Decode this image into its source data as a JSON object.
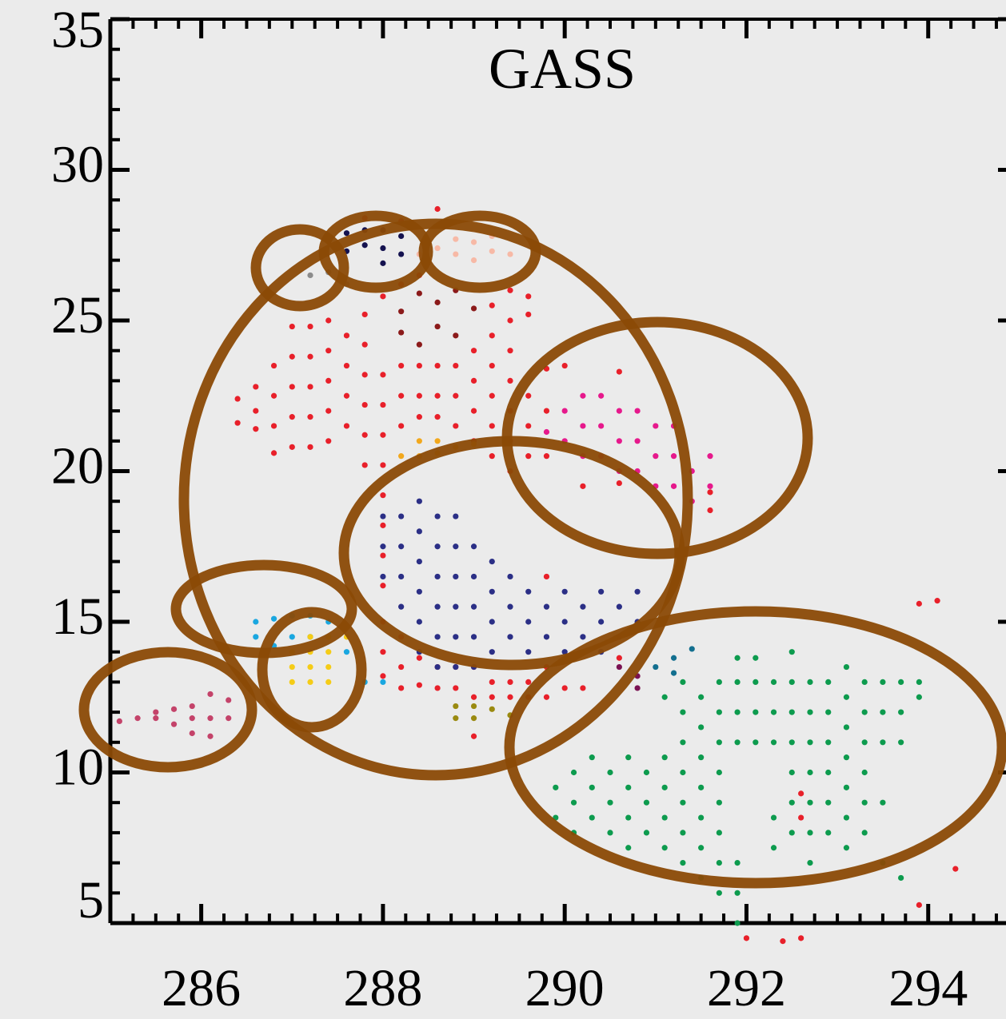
{
  "chart_data": {
    "type": "scatter",
    "title": "GASS",
    "xlim": [
      285,
      294.9
    ],
    "ylim": [
      5,
      35
    ],
    "xticks": [
      286,
      288,
      290,
      292,
      294
    ],
    "yticks": [
      5,
      10,
      15,
      20,
      25,
      30,
      35
    ],
    "series": [
      {
        "color": "#e8202a",
        "x": [
          286.4,
          286.4,
          286.6,
          286.6,
          286.6,
          286.8,
          286.8,
          286.8,
          286.8,
          287.0,
          287.0,
          287.0,
          287.0,
          287.0,
          287.2,
          287.2,
          287.2,
          287.2,
          287.2,
          287.4,
          287.4,
          287.4,
          287.4,
          287.4,
          287.6,
          287.6,
          287.6,
          287.6,
          287.8,
          287.8,
          287.8,
          287.8,
          287.8,
          287.8,
          287.8,
          288.0,
          288.0,
          288.0,
          288.0,
          288.0,
          288.0,
          288.0,
          288.0,
          288.0,
          288.0,
          288.0,
          288.0,
          288.2,
          288.2,
          288.2,
          288.2,
          288.2,
          288.2,
          288.2,
          288.2,
          288.4,
          288.4,
          288.4,
          288.4,
          288.4,
          288.4,
          288.6,
          288.6,
          288.6,
          288.6,
          288.6,
          288.6,
          288.8,
          288.8,
          288.8,
          288.8,
          288.8,
          289.0,
          289.0,
          289.0,
          289.0,
          289.0,
          289.0,
          289.0,
          289.2,
          289.2,
          289.2,
          289.2,
          289.2,
          289.2,
          289.2,
          289.2,
          289.4,
          289.4,
          289.4,
          289.4,
          289.4,
          289.4,
          289.4,
          289.4,
          289.4,
          289.6,
          289.6,
          289.6,
          289.6,
          289.6,
          289.6,
          289.6,
          289.8,
          289.8,
          289.8,
          289.8,
          289.8,
          289.8,
          290.0,
          290.0,
          290.2,
          290.2,
          290.6,
          290.6,
          290.6,
          291.6,
          291.6,
          292.0,
          292.4,
          292.6,
          292.6,
          292.6,
          293.9,
          293.9,
          294.1,
          294.3
        ],
        "values": [
          22.4,
          21.6,
          22.8,
          22.0,
          21.4,
          23.5,
          22.5,
          21.5,
          20.6,
          24.8,
          23.8,
          22.8,
          21.8,
          20.8,
          24.8,
          23.8,
          22.8,
          21.8,
          20.8,
          25,
          24,
          23,
          22,
          21,
          24.5,
          23.5,
          22.5,
          21.5,
          28.4,
          25.2,
          24.2,
          23.2,
          22.2,
          21.2,
          20.2,
          25.8,
          23.2,
          22.2,
          21.2,
          20.2,
          19.2,
          18.2,
          17.2,
          16.2,
          15,
          14,
          13.2,
          28.3,
          26.2,
          23.5,
          22.5,
          21.5,
          14.5,
          13.5,
          12.8,
          26.5,
          23.5,
          22.5,
          21.8,
          13.8,
          12.9,
          28.7,
          23.5,
          22.5,
          21.8,
          13.5,
          12.8,
          23.5,
          22.5,
          21.5,
          13.5,
          12.8,
          24,
          23,
          22,
          21,
          13.5,
          12.5,
          11.2,
          25.5,
          24.5,
          23.5,
          22.5,
          21.5,
          20.5,
          13,
          12.5,
          26,
          25,
          24,
          23,
          22,
          21,
          20,
          13,
          12.5,
          25.8,
          25.2,
          22.5,
          21.5,
          20.5,
          13,
          12.5,
          23.4,
          22,
          20.5,
          16.5,
          13.5,
          12.5,
          23.5,
          12.8,
          19.5,
          12.8,
          23.3,
          19.6,
          13.8,
          19.3,
          18.7,
          4.5,
          4.4,
          9.3,
          8.5,
          4.5,
          15.6,
          5.6,
          15.7,
          6.8
        ]
      },
      {
        "color": "#2b2f86",
        "x": [
          288.0,
          288.0,
          288.0,
          288.2,
          288.2,
          288.2,
          288.2,
          288.4,
          288.4,
          288.4,
          288.4,
          288.4,
          288.4,
          288.6,
          288.6,
          288.6,
          288.6,
          288.6,
          288.6,
          288.8,
          288.8,
          288.8,
          288.8,
          288.8,
          288.8,
          289.0,
          289.0,
          289.0,
          289.0,
          289.0,
          289.2,
          289.2,
          289.2,
          289.2,
          289.4,
          289.4,
          289.4,
          289.6,
          289.6,
          289.6,
          289.8,
          289.8,
          290.0,
          290.0,
          290.0,
          290.2,
          290.2,
          290.4,
          290.4,
          290.4,
          290.6,
          290.6,
          290.8,
          290.8
        ],
        "values": [
          16.5,
          17.5,
          18.5,
          15.5,
          16.5,
          17.5,
          18.5,
          14,
          15,
          16,
          17,
          18,
          19,
          13.5,
          14.5,
          15.5,
          16.5,
          17.5,
          18.5,
          13.5,
          14.5,
          15.5,
          16.5,
          17.5,
          18.5,
          13.5,
          14.5,
          15.5,
          16.5,
          17.5,
          14,
          15,
          16,
          17,
          14.5,
          15.5,
          16.5,
          14,
          15,
          16,
          14.5,
          15.5,
          14,
          15,
          16,
          14.5,
          15.5,
          14,
          15,
          16,
          14.5,
          15.5,
          15,
          16
        ]
      },
      {
        "color": "#e6198c",
        "x": [
          289.8,
          290.0,
          290.0,
          290.2,
          290.2,
          290.2,
          290.4,
          290.4,
          290.4,
          290.6,
          290.6,
          290.6,
          290.8,
          290.8,
          290.8,
          291.0,
          291.0,
          291.0,
          291.2,
          291.2,
          291.2,
          291.4,
          291.4,
          291.6,
          291.6
        ],
        "values": [
          21.3,
          21,
          22,
          20.5,
          21.5,
          22.5,
          20.5,
          21.5,
          22.5,
          20,
          21,
          22,
          20,
          21,
          22,
          19.5,
          20.5,
          21.5,
          19.5,
          20.5,
          21.5,
          19,
          20,
          19.5,
          20.5
        ]
      },
      {
        "color": "#0d9b4e",
        "x": [
          289.9,
          289.9,
          290.1,
          290.1,
          290.1,
          290.3,
          290.3,
          290.3,
          290.5,
          290.5,
          290.5,
          290.7,
          290.7,
          290.7,
          290.7,
          290.9,
          290.9,
          290.9,
          291.1,
          291.1,
          291.1,
          291.1,
          291.1,
          291.3,
          291.3,
          291.3,
          291.3,
          291.3,
          291.3,
          291.3,
          291.5,
          291.5,
          291.5,
          291.5,
          291.5,
          291.5,
          291.5,
          291.7,
          291.7,
          291.7,
          291.7,
          291.7,
          291.7,
          291.7,
          291.7,
          291.9,
          291.9,
          291.9,
          291.9,
          291.9,
          291.9,
          291.9,
          292.1,
          292.1,
          292.1,
          292.1,
          292.3,
          292.3,
          292.3,
          292.3,
          292.3,
          292.5,
          292.5,
          292.5,
          292.5,
          292.5,
          292.5,
          292.5,
          292.7,
          292.7,
          292.7,
          292.7,
          292.7,
          292.7,
          292.7,
          292.9,
          292.9,
          292.9,
          292.9,
          292.9,
          292.9,
          293.1,
          293.1,
          293.1,
          293.1,
          293.1,
          293.1,
          293.1,
          293.3,
          293.3,
          293.3,
          293.3,
          293.3,
          293.3,
          293.5,
          293.5,
          293.5,
          293.5,
          293.5,
          293.7,
          293.7,
          293.7,
          293.7,
          293.9,
          293.9
        ],
        "values": [
          8.5,
          9.5,
          8,
          9,
          10,
          8.5,
          9.5,
          10.5,
          8,
          9,
          10,
          7.5,
          8.5,
          9.5,
          10.5,
          8,
          9,
          10,
          7.5,
          8.5,
          9.5,
          10.5,
          12.5,
          7,
          8,
          9,
          10,
          11,
          12,
          13,
          6.5,
          7.5,
          8.5,
          9.5,
          10.5,
          11.5,
          12.5,
          6,
          7,
          8,
          9,
          10,
          11,
          12,
          13,
          5,
          6,
          7,
          11,
          12,
          13,
          13.8,
          11,
          12,
          13,
          13.8,
          7.5,
          8.5,
          11,
          12,
          13,
          8,
          9,
          10,
          11,
          12,
          13,
          14,
          7,
          8,
          9,
          10,
          11,
          12,
          13,
          8,
          9,
          10,
          11,
          12,
          13,
          7.5,
          8.5,
          9.5,
          10.5,
          11.5,
          12.5,
          13.5,
          8,
          9,
          10,
          11,
          12,
          13,
          7,
          9,
          11,
          12,
          13,
          6.5,
          11,
          12,
          13,
          12.5,
          13
        ]
      },
      {
        "color": "#1aa7e0",
        "x": [
          286.6,
          286.6,
          286.8,
          286.8,
          287.0,
          287.0,
          287.2,
          287.2,
          287.4,
          287.4,
          287.6,
          287.8,
          288.0
        ],
        "values": [
          14.5,
          15,
          14.2,
          15.1,
          14.5,
          15.2,
          14.5,
          15.2,
          14.5,
          15,
          14,
          13,
          13
        ]
      },
      {
        "color": "#f5cc17",
        "x": [
          287.0,
          287.0,
          287.0,
          287.2,
          287.2,
          287.2,
          287.2,
          287.4,
          287.4,
          287.4,
          287.4,
          287.6
        ],
        "values": [
          13,
          13.5,
          14,
          13,
          13.5,
          14,
          14.5,
          13,
          13.5,
          14,
          14.5,
          14.5
        ]
      },
      {
        "color": "#c4436a",
        "x": [
          285.1,
          285.3,
          285.5,
          285.5,
          285.7,
          285.7,
          285.9,
          285.9,
          285.9,
          286.1,
          286.1,
          286.1,
          286.3,
          286.3
        ],
        "values": [
          11.7,
          11.8,
          11.8,
          12.0,
          11.6,
          12.1,
          11.3,
          11.8,
          12.2,
          11.2,
          11.8,
          12.6,
          11.8,
          12.4
        ]
      },
      {
        "color": "#8b1a1a",
        "x": [
          288.2,
          288.4,
          288.6,
          288.8,
          289.0,
          288.2,
          288.4,
          288.6,
          288.8
        ],
        "values": [
          25.3,
          25.9,
          25.6,
          26,
          25.4,
          24.6,
          24.2,
          24.8,
          24.5
        ]
      },
      {
        "color": "#f7b9a6",
        "x": [
          288.4,
          288.6,
          288.8,
          288.8,
          289.0,
          289.0,
          289.2,
          289.2,
          289.4
        ],
        "values": [
          27.2,
          27.4,
          27.2,
          27.7,
          27,
          27.6,
          27.3,
          27.8,
          27.2
        ]
      },
      {
        "color": "#14124f",
        "x": [
          287.6,
          287.6,
          287.8,
          287.8,
          288.0,
          288.0,
          288.0,
          288.2,
          288.2
        ],
        "values": [
          27.9,
          27.3,
          28,
          27.5,
          28,
          27.4,
          26.9,
          27.8,
          27.2
        ]
      },
      {
        "color": "#8c8c8c",
        "x": [
          287.2,
          287.4,
          287.6
        ],
        "values": [
          26.5,
          26.6,
          26.2
        ]
      },
      {
        "color": "#f2a81d",
        "x": [
          288.2,
          288.4,
          288.4,
          288.6,
          288.6,
          288.8,
          289.0
        ],
        "values": [
          20.5,
          21,
          20.5,
          21,
          20.6,
          20.8,
          20.9
        ]
      },
      {
        "color": "#9a8a10",
        "x": [
          288.8,
          288.8,
          289.0,
          289.0,
          289.2,
          289.4
        ],
        "values": [
          12.2,
          11.8,
          12.2,
          11.8,
          12.1,
          11.9
        ]
      },
      {
        "color": "#136f8f",
        "x": [
          291.0,
          291.2,
          291.2,
          291.4
        ],
        "values": [
          13.5,
          13.8,
          13.3,
          14.1
        ]
      },
      {
        "color": "#7a1252",
        "x": [
          290.8,
          290.8,
          290.6
        ],
        "values": [
          13.2,
          12.8,
          13.5
        ]
      }
    ]
  }
}
